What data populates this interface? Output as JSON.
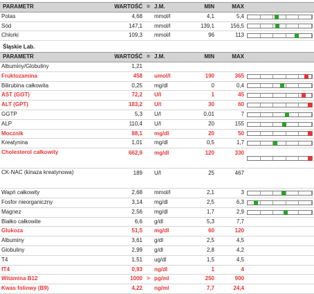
{
  "headers": {
    "parametr": "PARAMETR",
    "wartosc": "WARTOŚĆ",
    "eq": "=",
    "jm": "J.M.",
    "min": "MIN",
    "max": "MAX"
  },
  "section2_title": "Śląskie Lab.",
  "colors": {
    "normal_marker": "#2e9e2e",
    "abnormal_marker": "#e53535",
    "abnormal_text": "#e53535",
    "header_bg": "#d4d4d4"
  },
  "table1": [
    {
      "name": "Potas",
      "value": "4,68",
      "flag": "",
      "unit": "mmol/l",
      "min": "4,1",
      "max": "5,4",
      "status": "normal",
      "level": 0.45
    },
    {
      "name": "Sód",
      "value": "147,1",
      "flag": "",
      "unit": "mmol/l",
      "min": "139,1",
      "max": "156,5",
      "status": "normal",
      "level": 0.46
    },
    {
      "name": "Chlorki",
      "value": "109,3",
      "flag": "",
      "unit": "mmol/l",
      "min": "96",
      "max": "113",
      "status": "normal",
      "level": 0.78
    }
  ],
  "table2": [
    {
      "name": "Albuminy/Globuliny",
      "value": "1,21",
      "flag": "",
      "unit": "",
      "min": "",
      "max": "",
      "status": "none"
    },
    {
      "name": "Fruktozamina",
      "value": "458",
      "flag": "",
      "unit": "umol/l",
      "min": "190",
      "max": "365",
      "status": "high",
      "level": 0.94
    },
    {
      "name": "Bilirubina całkowita",
      "value": "0,25",
      "flag": "",
      "unit": "mg/dl",
      "min": "0",
      "max": "0,4",
      "status": "normal",
      "level": 0.54
    },
    {
      "name": "AST (GOT)",
      "value": "72,2",
      "flag": "",
      "unit": "U/l",
      "min": "1",
      "max": "45",
      "status": "high",
      "level": 0.9
    },
    {
      "name": "ALT (GPT)",
      "value": "183,2",
      "flag": "",
      "unit": "U/l",
      "min": "30",
      "max": "60",
      "status": "high",
      "level": 1.0
    },
    {
      "name": "GGTP",
      "value": "5,3",
      "flag": "",
      "unit": "U/l",
      "min": "0,01",
      "max": "7",
      "status": "normal",
      "level": 0.62
    },
    {
      "name": "ALP",
      "value": "110,4",
      "flag": "",
      "unit": "U/l",
      "min": "20",
      "max": "155",
      "status": "normal",
      "level": 0.58
    },
    {
      "name": "Mocznik",
      "value": "88,1",
      "flag": "",
      "unit": "mg/dl",
      "min": "20",
      "max": "50",
      "status": "high",
      "level": 1.0
    },
    {
      "name": "Kreatynina",
      "value": "1,01",
      "flag": "",
      "unit": "mg/dl",
      "min": "0,5",
      "max": "1,7",
      "status": "normal",
      "level": 0.42
    },
    {
      "name": "Cholesterol całkowity",
      "value": "662,9",
      "flag": "",
      "unit": "mg/dl",
      "min": "120",
      "max": "330",
      "status": "high",
      "level": 1.0,
      "tall": true
    },
    {
      "name": "CK-NAC (kinaza kreatynowa)",
      "value": "189",
      "flag": "",
      "unit": "U/l",
      "min": "25",
      "max": "467",
      "status": "none",
      "tall": true
    },
    {
      "name": "Wapń całkowity",
      "value": "2,68",
      "flag": "",
      "unit": "mmol/l",
      "min": "2,1",
      "max": "3",
      "status": "normal",
      "level": 0.56
    },
    {
      "name": "Fosfor nieorganiczny",
      "value": "3,14",
      "flag": "",
      "unit": "mg/dl",
      "min": "2,5",
      "max": "6,3",
      "status": "normal",
      "level": 0.1
    },
    {
      "name": "Magnez",
      "value": "2,56",
      "flag": "",
      "unit": "mg/dl",
      "min": "1,7",
      "max": "2,9",
      "status": "normal",
      "level": 0.6
    },
    {
      "name": "Białko całkowite",
      "value": "6,6",
      "flag": "",
      "unit": "g/dl",
      "min": "5,3",
      "max": "7,7",
      "status": "none"
    },
    {
      "name": "Glukoza",
      "value": "51,5",
      "flag": "",
      "unit": "mg/dl",
      "min": "60",
      "max": "120",
      "status": "low"
    },
    {
      "name": "Albuminy",
      "value": "3,61",
      "flag": "",
      "unit": "g/dl",
      "min": "2,5",
      "max": "4,5",
      "status": "none"
    },
    {
      "name": "Globuliny",
      "value": "2,99",
      "flag": "",
      "unit": "g/dl",
      "min": "2,8",
      "max": "4,2",
      "status": "none"
    },
    {
      "name": "T4",
      "value": "1,51",
      "flag": "",
      "unit": "ug/dl",
      "min": "1,5",
      "max": "4,5",
      "status": "none"
    },
    {
      "name": "fT4",
      "value": "0,93",
      "flag": "",
      "unit": "ng/dl",
      "min": "1",
      "max": "4",
      "status": "low"
    },
    {
      "name": "Witamina B12",
      "value": "1000",
      "flag": ">",
      "unit": "pg/ml",
      "min": "250",
      "max": "900",
      "status": "high"
    },
    {
      "name": "Kwas foliowy (B9)",
      "value": "4,22",
      "flag": "",
      "unit": "ng/ml",
      "min": "7,7",
      "max": "24,4",
      "status": "low"
    }
  ]
}
